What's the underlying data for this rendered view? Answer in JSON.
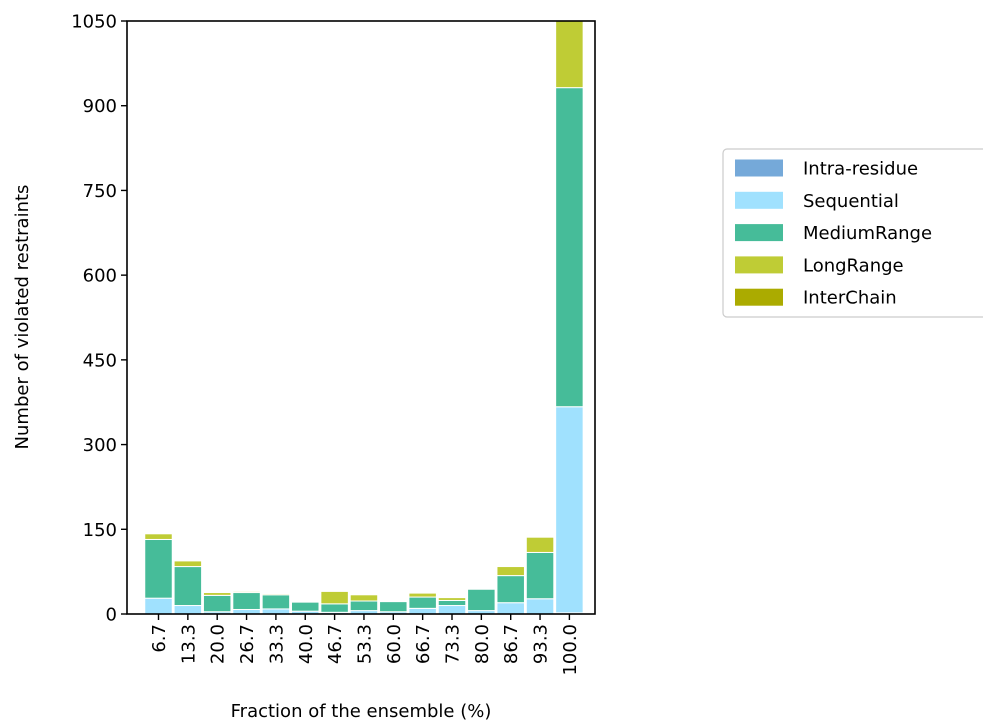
{
  "chart_data": {
    "type": "bar",
    "stacked": true,
    "title": "",
    "xlabel": "Fraction of the ensemble (%)",
    "ylabel": "Number of violated restraints",
    "categories": [
      "6.7",
      "13.3",
      "20.0",
      "26.7",
      "33.3",
      "40.0",
      "46.7",
      "53.3",
      "60.0",
      "66.7",
      "73.3",
      "80.0",
      "86.7",
      "93.3",
      "100.0"
    ],
    "ylim": [
      0,
      1050
    ],
    "yticks": [
      "0",
      "150",
      "300",
      "450",
      "600",
      "750",
      "900",
      "1050"
    ],
    "grid": false,
    "legend_position": "right",
    "series": [
      {
        "name": "Intra-residue",
        "color": "#75a9d9",
        "values": [
          0,
          0,
          0,
          0,
          0,
          0,
          0,
          0,
          0,
          0,
          0,
          0,
          0,
          0,
          2
        ]
      },
      {
        "name": "Sequential",
        "color": "#a0e1fe",
        "values": [
          28,
          15,
          4,
          8,
          9,
          5,
          3,
          6,
          4,
          10,
          15,
          6,
          20,
          27,
          365
        ]
      },
      {
        "name": "MediumRange",
        "color": "#46bc99",
        "values": [
          104,
          69,
          29,
          30,
          25,
          16,
          15,
          17,
          18,
          20,
          9,
          38,
          48,
          82,
          565
        ]
      },
      {
        "name": "LongRange",
        "color": "#bfcc35",
        "values": [
          10,
          10,
          5,
          2,
          2,
          0,
          22,
          11,
          1,
          7,
          5,
          1,
          16,
          27,
          118
        ]
      },
      {
        "name": "InterChain",
        "color": "#abab00",
        "values": [
          0,
          0,
          0,
          0,
          0,
          0,
          0,
          0,
          0,
          0,
          0,
          0,
          0,
          0,
          0
        ]
      }
    ]
  }
}
